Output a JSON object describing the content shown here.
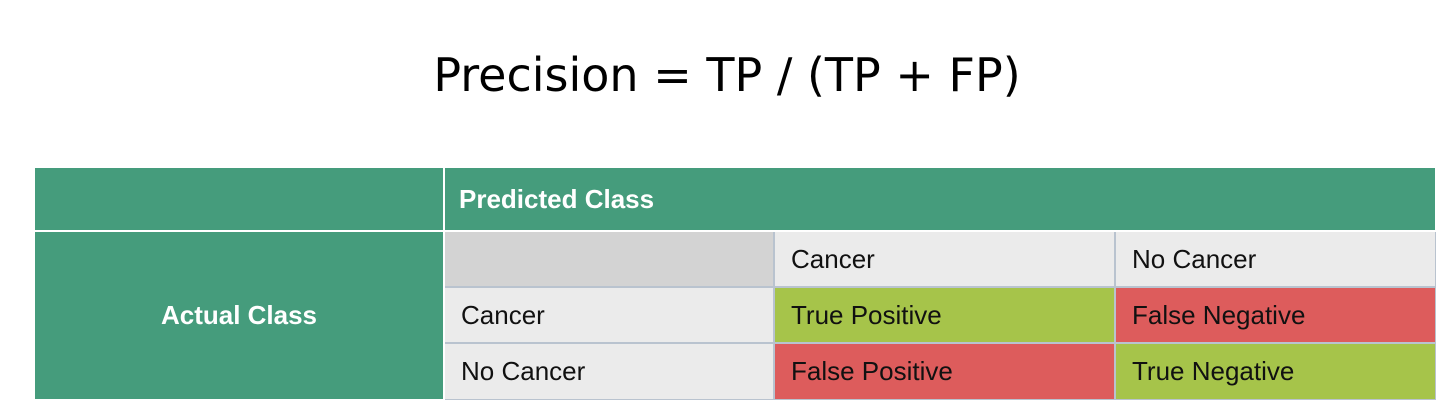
{
  "formula": "Precision = TP / (TP + FP)",
  "colors": {
    "header_green": "#459c7c",
    "cell_grey": "#ebebeb",
    "corner_grey": "#d3d3d3",
    "correct_green": "#a6c44a",
    "error_red": "#dd5c5c"
  },
  "matrix": {
    "predicted_header": "Predicted Class",
    "actual_header": "Actual Class",
    "column_labels": [
      "Cancer",
      "No Cancer"
    ],
    "row_labels": [
      "Cancer",
      "No Cancer"
    ],
    "cells": [
      [
        "True Positive",
        "False Negative"
      ],
      [
        "False Positive",
        "True Negative"
      ]
    ]
  }
}
